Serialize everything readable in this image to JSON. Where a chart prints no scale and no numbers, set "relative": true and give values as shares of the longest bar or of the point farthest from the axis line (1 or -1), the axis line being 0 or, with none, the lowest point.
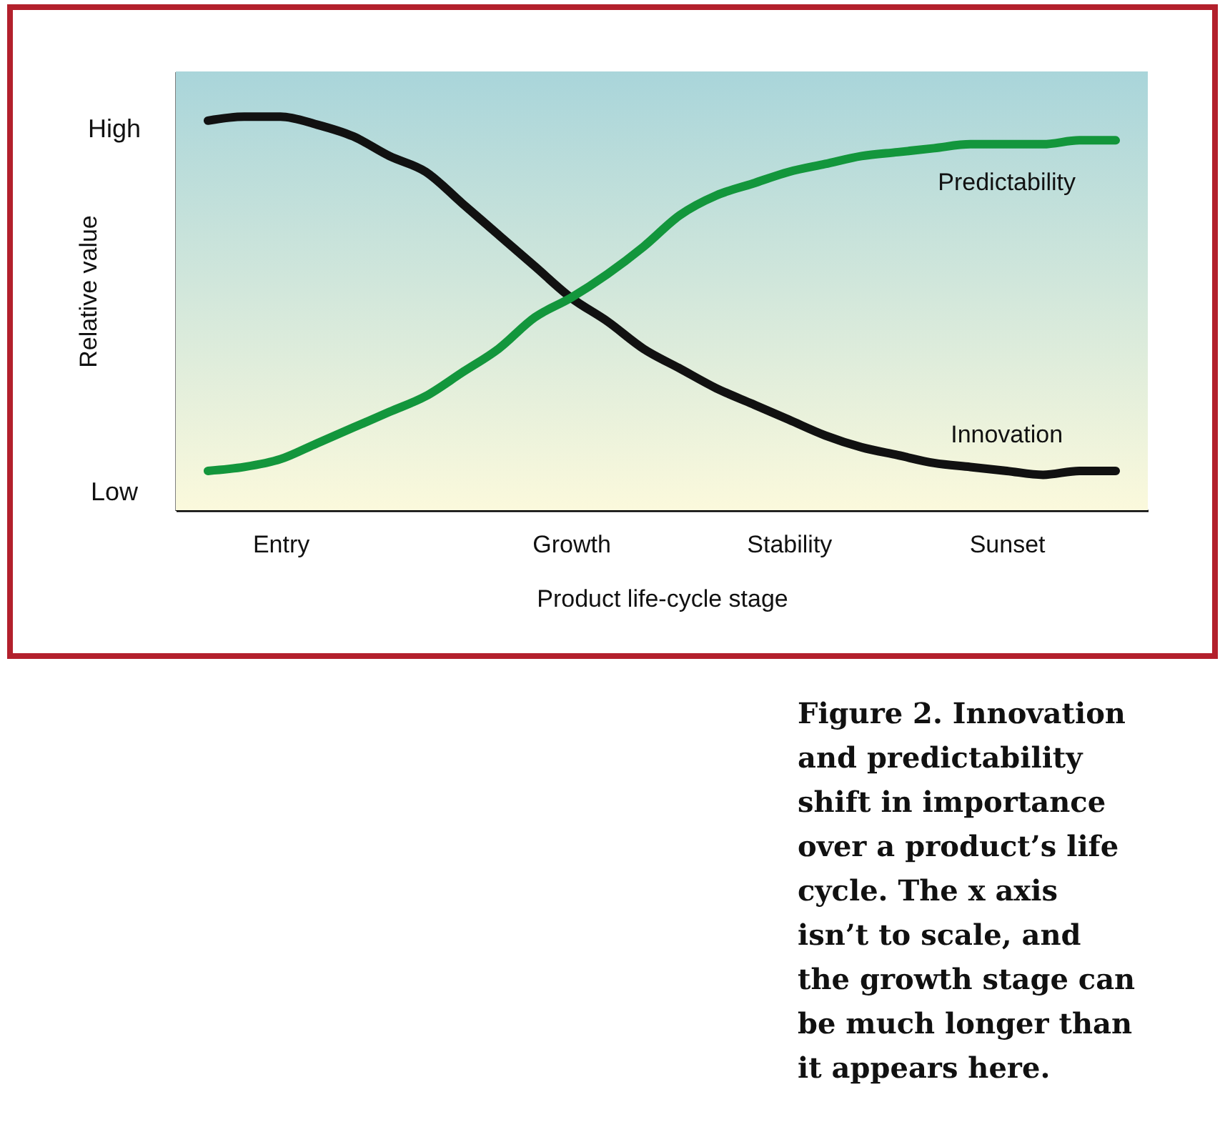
{
  "chart_data": {
    "type": "line",
    "relative": true,
    "xlabel": "Product life-cycle stage",
    "ylabel": "Relative value",
    "categories": [
      null,
      null,
      "Entry",
      null,
      null,
      null,
      null,
      null,
      null,
      null,
      "Growth",
      null,
      null,
      null,
      null,
      null,
      "Stability",
      null,
      null,
      null,
      null,
      null,
      "Sunset",
      null,
      null,
      null
    ],
    "series": [
      {
        "name": "Innovation",
        "color": "#111111",
        "values": [
          0.99,
          1.0,
          1.0,
          0.98,
          0.95,
          0.9,
          0.86,
          0.78,
          0.7,
          0.62,
          0.54,
          0.48,
          0.41,
          0.36,
          0.31,
          0.27,
          0.23,
          0.19,
          0.16,
          0.14,
          0.12,
          0.11,
          0.1,
          0.09,
          0.1,
          0.1
        ]
      },
      {
        "name": "Predictability",
        "color": "#13963c",
        "values": [
          0.1,
          0.11,
          0.13,
          0.17,
          0.21,
          0.25,
          0.29,
          0.35,
          0.41,
          0.49,
          0.54,
          0.6,
          0.67,
          0.75,
          0.8,
          0.83,
          0.86,
          0.88,
          0.9,
          0.91,
          0.92,
          0.93,
          0.93,
          0.93,
          0.94,
          0.94
        ]
      }
    ],
    "annotations": [
      "High",
      "Low",
      "Figure 2. Innovation and predictability shift in importance over a product’s life cycle. The x axis isn’t to scale, and the growth stage can be much longer than it appears here."
    ],
    "legend": false,
    "grid": false,
    "marker": "none",
    "line_style": "solid"
  }
}
